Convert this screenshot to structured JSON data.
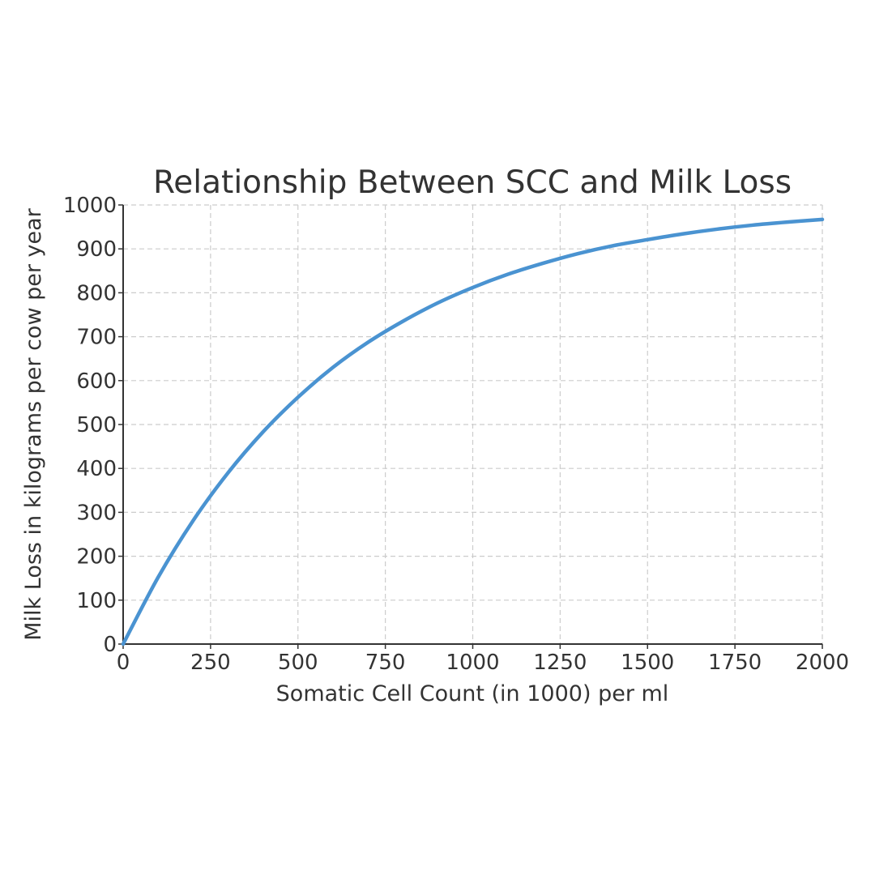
{
  "chart_data": {
    "type": "line",
    "title": "Relationship Between SCC and Milk Loss",
    "xlabel": "Somatic Cell Count (in 1000) per ml",
    "ylabel": "Milk Loss in kilograms per cow per year",
    "xlim": [
      0,
      2000
    ],
    "ylim": [
      0,
      1000
    ],
    "x_ticks": [
      "0",
      "250",
      "500",
      "750",
      "1000",
      "1250",
      "1500",
      "1750",
      "2000"
    ],
    "y_ticks": [
      "0",
      "100",
      "200",
      "300",
      "400",
      "500",
      "600",
      "700",
      "800",
      "900",
      "1000"
    ],
    "grid": true,
    "series": [
      {
        "color": "#4a93d1",
        "x": [
          0,
          100,
          200,
          300,
          400,
          500,
          600,
          700,
          800,
          900,
          1000,
          1100,
          1200,
          1300,
          1400,
          1500,
          1600,
          1700,
          1800,
          1900,
          2000
        ],
        "y": [
          0,
          152,
          281,
          390,
          483,
          562,
          630,
          687,
          735,
          777,
          812,
          842,
          867,
          889,
          907,
          921,
          934,
          945,
          954,
          961,
          967
        ]
      }
    ]
  }
}
